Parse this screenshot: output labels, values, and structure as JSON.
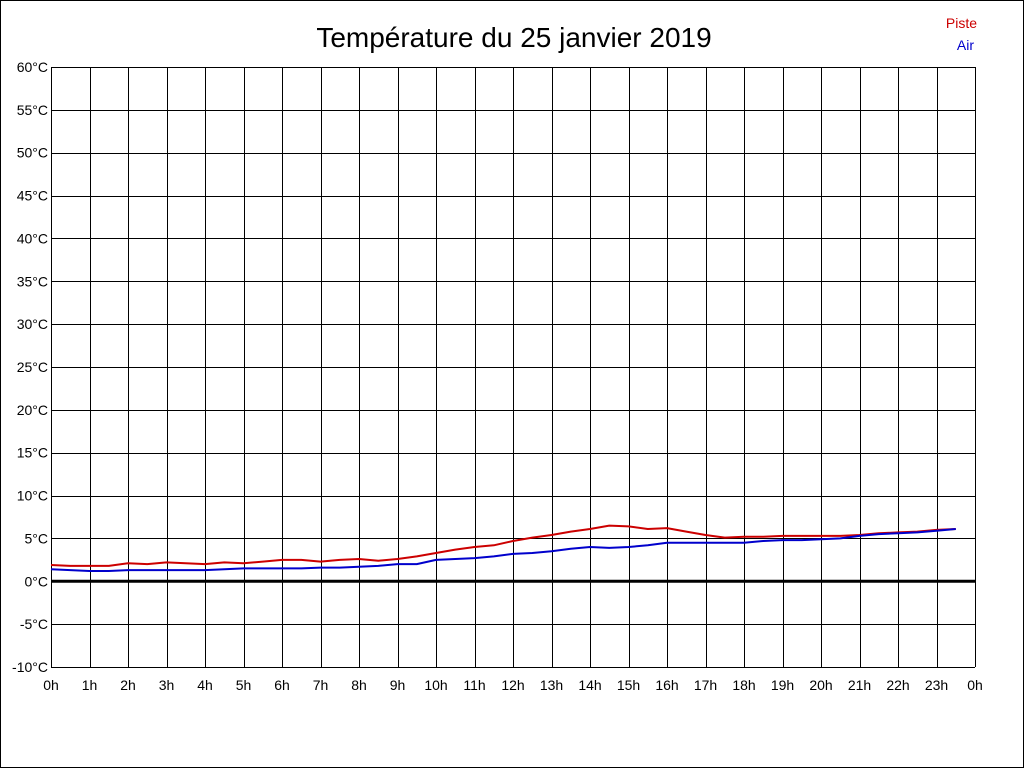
{
  "chart_data": {
    "type": "line",
    "title": "Température du 25 janvier 2019",
    "xlabel": "",
    "ylabel": "",
    "x_hours": [
      0,
      0.5,
      1,
      1.5,
      2,
      2.5,
      3,
      3.5,
      4,
      4.5,
      5,
      5.5,
      6,
      6.5,
      7,
      7.5,
      8,
      8.5,
      9,
      9.5,
      10,
      10.5,
      11,
      11.5,
      12,
      12.5,
      13,
      13.5,
      14,
      14.5,
      15,
      15.5,
      16,
      16.5,
      17,
      17.5,
      18,
      18.5,
      19,
      19.5,
      20,
      20.5,
      21,
      21.5,
      22,
      22.5,
      23,
      23.5
    ],
    "x_ticks": [
      "0h",
      "1h",
      "2h",
      "3h",
      "4h",
      "5h",
      "6h",
      "7h",
      "8h",
      "9h",
      "10h",
      "11h",
      "12h",
      "13h",
      "14h",
      "15h",
      "16h",
      "17h",
      "18h",
      "19h",
      "20h",
      "21h",
      "22h",
      "23h",
      "0h"
    ],
    "y_ticks": [
      "60°C",
      "55°C",
      "50°C",
      "45°C",
      "40°C",
      "35°C",
      "30°C",
      "25°C",
      "20°C",
      "15°C",
      "10°C",
      "5°C",
      "0°C",
      "-5°C",
      "-10°C"
    ],
    "xlim": [
      0,
      24
    ],
    "ylim": [
      -10,
      60
    ],
    "grid": true,
    "legend_position": "top-right",
    "zero_line": true,
    "series": [
      {
        "name": "Piste",
        "color": "#cc0000",
        "values": [
          1.9,
          1.8,
          1.8,
          1.8,
          2.1,
          2.0,
          2.2,
          2.1,
          2.0,
          2.2,
          2.1,
          2.3,
          2.5,
          2.5,
          2.3,
          2.5,
          2.6,
          2.4,
          2.6,
          2.9,
          3.3,
          3.7,
          4.0,
          4.2,
          4.7,
          5.1,
          5.4,
          5.8,
          6.1,
          6.5,
          6.4,
          6.1,
          6.2,
          5.8,
          5.4,
          5.1,
          5.2,
          5.2,
          5.3,
          5.3,
          5.3,
          5.3,
          5.4,
          5.6,
          5.7,
          5.8,
          6.0,
          6.1
        ]
      },
      {
        "name": "Air",
        "color": "#0000cc",
        "values": [
          1.4,
          1.3,
          1.2,
          1.2,
          1.3,
          1.3,
          1.3,
          1.3,
          1.3,
          1.4,
          1.5,
          1.5,
          1.5,
          1.5,
          1.6,
          1.6,
          1.7,
          1.8,
          2.0,
          2.0,
          2.5,
          2.6,
          2.7,
          2.9,
          3.2,
          3.3,
          3.5,
          3.8,
          4.0,
          3.9,
          4.0,
          4.2,
          4.5,
          4.5,
          4.5,
          4.5,
          4.5,
          4.7,
          4.8,
          4.8,
          4.9,
          5.0,
          5.3,
          5.5,
          5.6,
          5.7,
          5.9,
          6.1
        ]
      }
    ]
  }
}
